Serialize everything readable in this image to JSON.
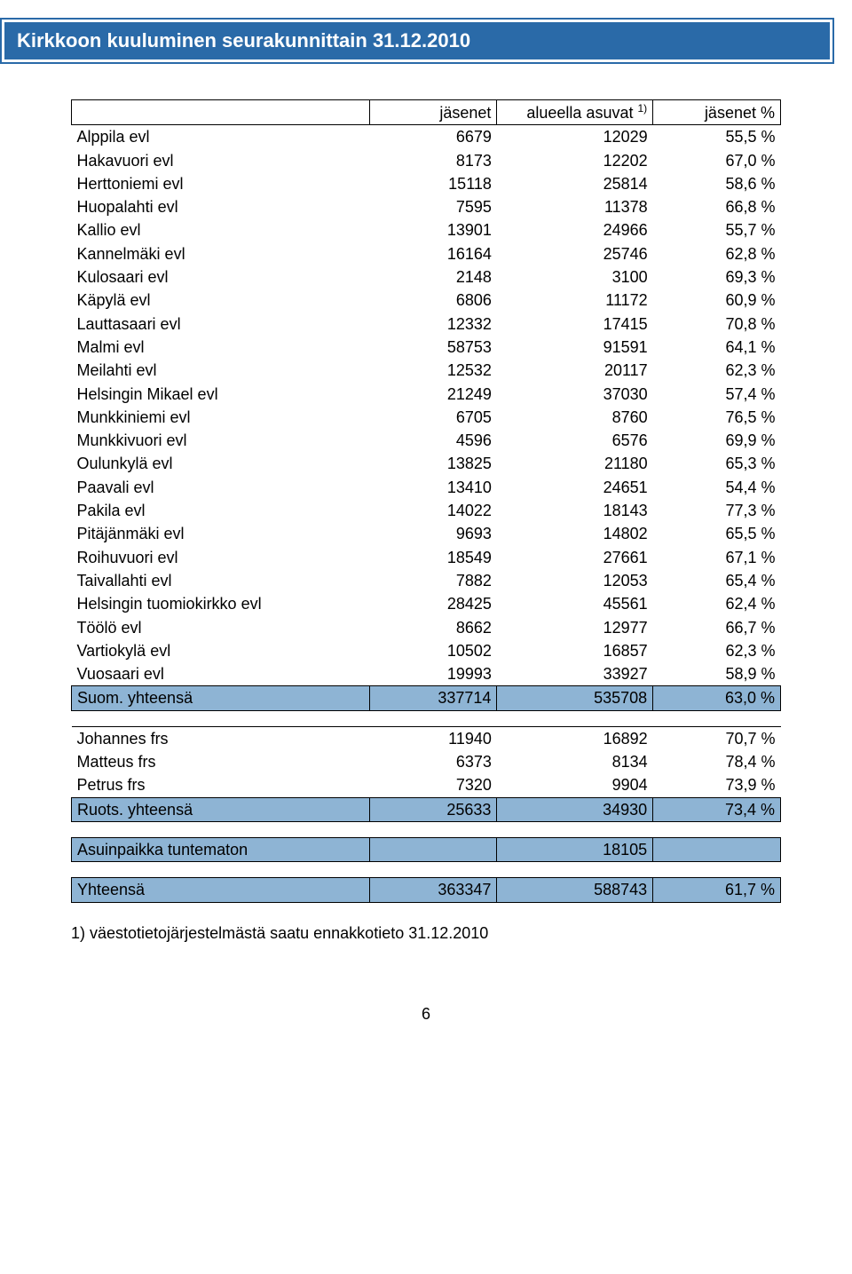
{
  "title": "Kirkkoon kuuluminen seurakunnittain 31.12.2010",
  "headers": {
    "name": "",
    "jasenet": "jäsenet",
    "alueella": "alueella asuvat",
    "alueella_sup": "1)",
    "pct": "jäsenet %"
  },
  "colors": {
    "header_bar": "#2a6aa8",
    "total_bg": "#8eb4d4",
    "text": "#000000",
    "white": "#ffffff"
  },
  "main_rows": [
    {
      "name": "Alppila evl",
      "jasenet": "6679",
      "alueella": "12029",
      "pct": "55,5 %"
    },
    {
      "name": "Hakavuori evl",
      "jasenet": "8173",
      "alueella": "12202",
      "pct": "67,0 %"
    },
    {
      "name": "Herttoniemi evl",
      "jasenet": "15118",
      "alueella": "25814",
      "pct": "58,6 %"
    },
    {
      "name": "Huopalahti evl",
      "jasenet": "7595",
      "alueella": "11378",
      "pct": "66,8 %"
    },
    {
      "name": "Kallio evl",
      "jasenet": "13901",
      "alueella": "24966",
      "pct": "55,7 %"
    },
    {
      "name": "Kannelmäki evl",
      "jasenet": "16164",
      "alueella": "25746",
      "pct": "62,8 %"
    },
    {
      "name": "Kulosaari evl",
      "jasenet": "2148",
      "alueella": "3100",
      "pct": "69,3 %"
    },
    {
      "name": "Käpylä evl",
      "jasenet": "6806",
      "alueella": "11172",
      "pct": "60,9 %"
    },
    {
      "name": "Lauttasaari evl",
      "jasenet": "12332",
      "alueella": "17415",
      "pct": "70,8 %"
    },
    {
      "name": "Malmi evl",
      "jasenet": "58753",
      "alueella": "91591",
      "pct": "64,1 %"
    },
    {
      "name": "Meilahti evl",
      "jasenet": "12532",
      "alueella": "20117",
      "pct": "62,3 %"
    },
    {
      "name": "Helsingin Mikael evl",
      "jasenet": "21249",
      "alueella": "37030",
      "pct": "57,4 %"
    },
    {
      "name": "Munkkiniemi evl",
      "jasenet": "6705",
      "alueella": "8760",
      "pct": "76,5 %"
    },
    {
      "name": "Munkkivuori evl",
      "jasenet": "4596",
      "alueella": "6576",
      "pct": "69,9 %"
    },
    {
      "name": "Oulunkylä evl",
      "jasenet": "13825",
      "alueella": "21180",
      "pct": "65,3 %"
    },
    {
      "name": "Paavali evl",
      "jasenet": "13410",
      "alueella": "24651",
      "pct": "54,4 %"
    },
    {
      "name": "Pakila evl",
      "jasenet": "14022",
      "alueella": "18143",
      "pct": "77,3 %"
    },
    {
      "name": "Pitäjänmäki evl",
      "jasenet": "9693",
      "alueella": "14802",
      "pct": "65,5 %"
    },
    {
      "name": "Roihuvuori evl",
      "jasenet": "18549",
      "alueella": "27661",
      "pct": "67,1 %"
    },
    {
      "name": "Taivallahti evl",
      "jasenet": "7882",
      "alueella": "12053",
      "pct": "65,4 %"
    },
    {
      "name": "Helsingin tuomiokirkko evl",
      "jasenet": "28425",
      "alueella": "45561",
      "pct": "62,4 %"
    },
    {
      "name": "Töölö evl",
      "jasenet": "8662",
      "alueella": "12977",
      "pct": "66,7 %"
    },
    {
      "name": "Vartiokylä evl",
      "jasenet": "10502",
      "alueella": "16857",
      "pct": "62,3 %"
    },
    {
      "name": "Vuosaari evl",
      "jasenet": "19993",
      "alueella": "33927",
      "pct": "58,9 %"
    }
  ],
  "main_total": {
    "name": "Suom. yhteensä",
    "jasenet": "337714",
    "alueella": "535708",
    "pct": "63,0 %"
  },
  "swedish_rows": [
    {
      "name": "Johannes frs",
      "jasenet": "11940",
      "alueella": "16892",
      "pct": "70,7 %"
    },
    {
      "name": "Matteus frs",
      "jasenet": "6373",
      "alueella": "8134",
      "pct": "78,4 %"
    },
    {
      "name": "Petrus frs",
      "jasenet": "7320",
      "alueella": "9904",
      "pct": "73,9 %"
    }
  ],
  "swedish_total": {
    "name": "Ruots. yhteensä",
    "jasenet": "25633",
    "alueella": "34930",
    "pct": "73,4 %"
  },
  "unknown": {
    "name": "Asuinpaikka tuntematon",
    "value": "18105"
  },
  "grand_total": {
    "name": "Yhteensä",
    "jasenet": "363347",
    "alueella": "588743",
    "pct": "61,7 %"
  },
  "footnote": "1) väestotietojärjestelmästä saatu ennakkotieto 31.12.2010",
  "page_number": "6"
}
